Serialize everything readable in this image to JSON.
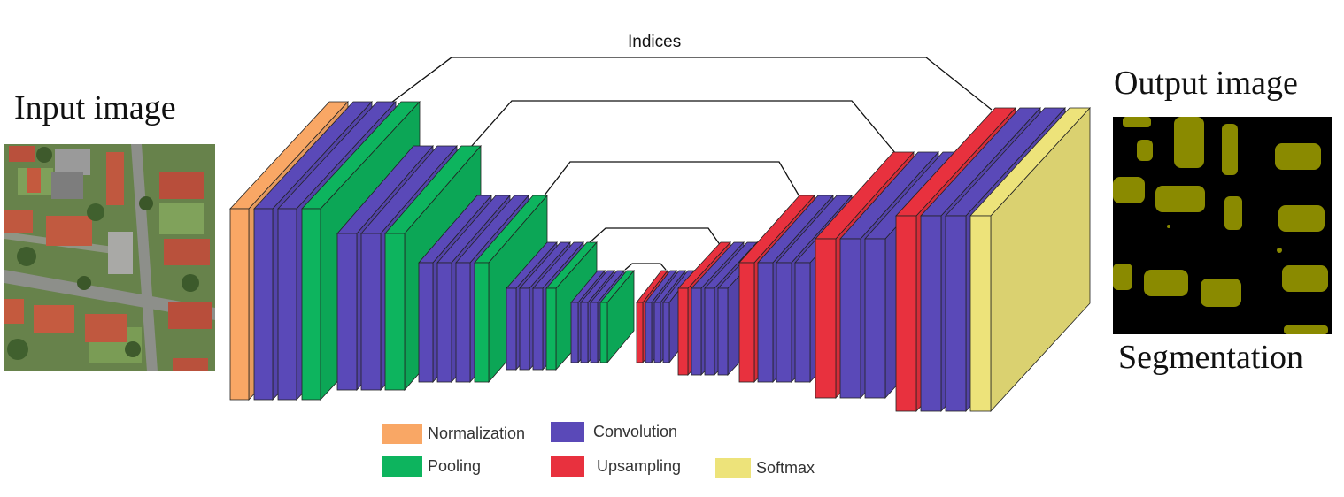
{
  "titles": {
    "input": "Input image",
    "output": "Output image",
    "segmentation": "Segmentation",
    "indices": "Indices"
  },
  "colors": {
    "normalization": "#F9A765",
    "convolution": "#5A49B8",
    "pooling": "#0DB45E",
    "upsampling": "#E8313E",
    "softmax": "#EDE37A"
  },
  "legend": [
    {
      "key": "normalization",
      "label": "Normalization"
    },
    {
      "key": "convolution",
      "label": "Convolution"
    },
    {
      "key": "pooling",
      "label": "Pooling"
    },
    {
      "key": "upsampling",
      "label": "Upsampling"
    },
    {
      "key": "softmax",
      "label": "Softmax"
    }
  ],
  "network": {
    "encoder": [
      [
        "normalization",
        "convolution",
        "convolution",
        "pooling"
      ],
      [
        "convolution",
        "convolution",
        "pooling"
      ],
      [
        "convolution",
        "convolution",
        "convolution",
        "pooling"
      ],
      [
        "convolution",
        "convolution",
        "convolution",
        "pooling"
      ],
      [
        "convolution",
        "convolution",
        "convolution",
        "pooling"
      ]
    ],
    "decoder": [
      [
        "upsampling",
        "convolution",
        "convolution",
        "convolution"
      ],
      [
        "upsampling",
        "convolution",
        "convolution",
        "convolution"
      ],
      [
        "upsampling",
        "convolution",
        "convolution",
        "convolution"
      ],
      [
        "upsampling",
        "convolution",
        "convolution"
      ],
      [
        "upsampling",
        "convolution",
        "convolution",
        "softmax"
      ]
    ]
  }
}
